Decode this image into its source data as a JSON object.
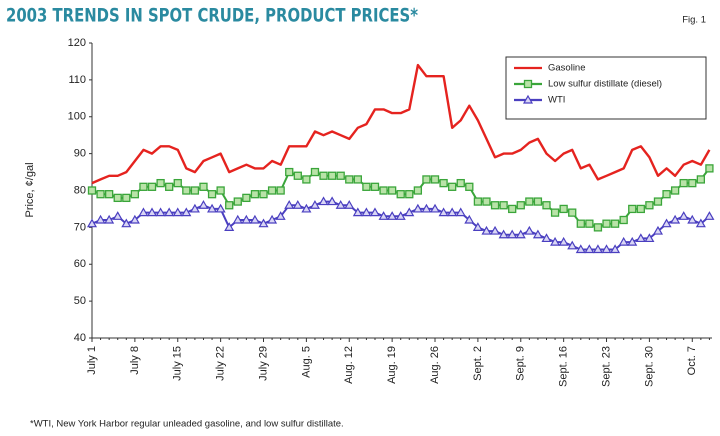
{
  "chart_data": {
    "type": "line",
    "title": "2003 TRENDS IN SPOT CRUDE, PRODUCT PRICES*",
    "annotation": "Fig. 1",
    "footnote": "*WTI, New York Harbor regular unleaded gasoline, and low sulfur distillate.",
    "y_label": "Price, ¢/gal",
    "ylim": [
      40,
      120
    ],
    "yticks": [
      40,
      50,
      60,
      70,
      80,
      90,
      100,
      110,
      120
    ],
    "legend": "upper right",
    "categories": [
      "July 1",
      null,
      null,
      null,
      null,
      "July 8",
      null,
      null,
      null,
      null,
      "July 15",
      null,
      null,
      null,
      null,
      "July 22",
      null,
      null,
      null,
      null,
      "July 29",
      null,
      null,
      null,
      null,
      "Aug. 5",
      null,
      null,
      null,
      null,
      "Aug. 12",
      null,
      null,
      null,
      null,
      "Aug. 19",
      null,
      null,
      null,
      null,
      "Aug. 26",
      null,
      null,
      null,
      null,
      "Sept. 2",
      null,
      null,
      null,
      null,
      "Sept. 9",
      null,
      null,
      null,
      null,
      "Sept. 16",
      null,
      null,
      null,
      null,
      "Sept. 23",
      null,
      null,
      null,
      null,
      "Sept. 30",
      null,
      null,
      null,
      null,
      "Oct. 7",
      null,
      null
    ],
    "series": [
      {
        "name": "Gasoline",
        "color": "#e5231f",
        "marker": "none",
        "values": [
          82,
          83,
          84,
          84,
          85,
          88,
          91,
          90,
          92,
          92,
          91,
          86,
          85,
          88,
          89,
          90,
          85,
          86,
          87,
          86,
          86,
          88,
          87,
          92,
          92,
          92,
          96,
          95,
          96,
          95,
          94,
          97,
          98,
          102,
          102,
          101,
          101,
          102,
          114,
          111,
          111,
          111,
          97,
          99,
          103,
          99,
          94,
          89,
          90,
          90,
          91,
          93,
          94,
          90,
          88,
          90,
          91,
          86,
          87,
          83,
          84,
          85,
          86,
          91,
          92,
          89,
          84,
          86,
          84,
          87,
          88,
          87,
          91
        ]
      },
      {
        "name": "Low sulfur distillate (diesel)",
        "color": "#3aa53a",
        "marker": "square",
        "values": [
          80,
          79,
          79,
          78,
          78,
          79,
          81,
          81,
          82,
          81,
          82,
          80,
          80,
          81,
          79,
          80,
          76,
          77,
          78,
          79,
          79,
          80,
          80,
          85,
          84,
          83,
          85,
          84,
          84,
          84,
          83,
          83,
          81,
          81,
          80,
          80,
          79,
          79,
          80,
          83,
          83,
          82,
          81,
          82,
          81,
          77,
          77,
          76,
          76,
          75,
          76,
          77,
          77,
          76,
          74,
          75,
          74,
          71,
          71,
          70,
          71,
          71,
          72,
          75,
          75,
          76,
          77,
          79,
          80,
          82,
          82,
          83,
          86
        ]
      },
      {
        "name": "WTI",
        "color": "#4a3fc0",
        "marker": "triangle",
        "values": [
          71,
          72,
          72,
          73,
          71,
          72,
          74,
          74,
          74,
          74,
          74,
          74,
          75,
          76,
          75,
          75,
          70,
          72,
          72,
          72,
          71,
          72,
          73,
          76,
          76,
          75,
          76,
          77,
          77,
          76,
          76,
          74,
          74,
          74,
          73,
          73,
          73,
          74,
          75,
          75,
          75,
          74,
          74,
          74,
          72,
          70,
          69,
          69,
          68,
          68,
          68,
          69,
          68,
          67,
          66,
          66,
          65,
          64,
          64,
          64,
          64,
          64,
          66,
          66,
          67,
          67,
          69,
          71,
          72,
          73,
          72,
          71,
          73
        ]
      }
    ]
  }
}
